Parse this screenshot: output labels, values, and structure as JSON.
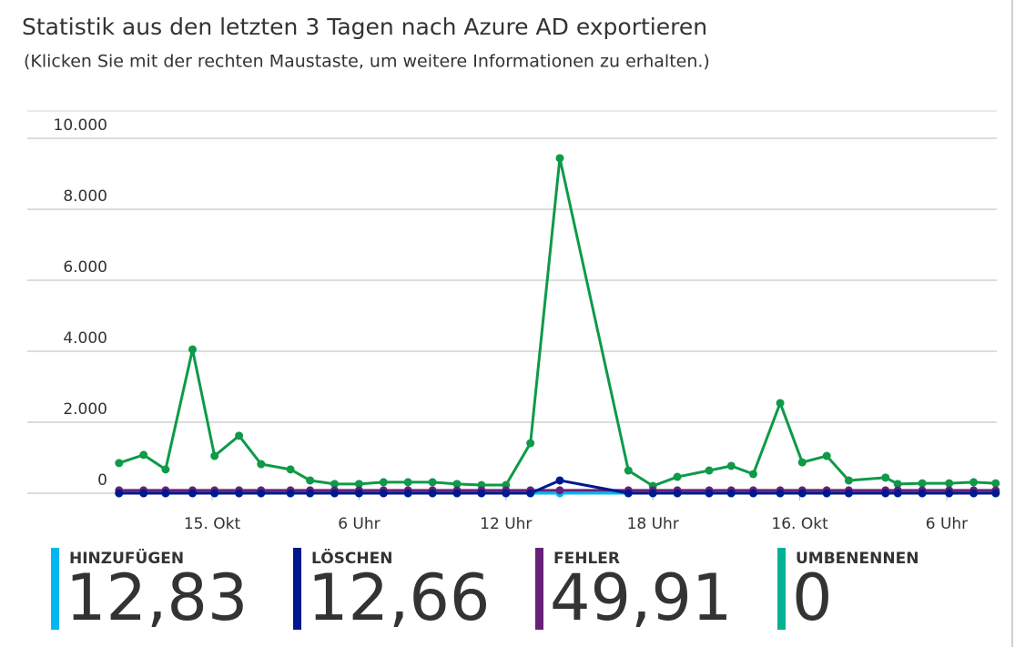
{
  "chart_data": {
    "type": "line",
    "title": "Statistik aus den letzten 3 Tagen nach Azure AD exportieren",
    "subtitle": "(Klicken Sie mit der rechten Maustaste, um weitere Informationen zu erhalten.)",
    "x": [
      -3.8,
      -2.8,
      -1.9,
      -0.8,
      0.1,
      1.1,
      2.0,
      3.2,
      4.0,
      5.0,
      6.0,
      7.0,
      8.0,
      9.0,
      10.0,
      11.0,
      12.0,
      13.0,
      14.2,
      17.0,
      18.0,
      19.0,
      20.3,
      21.2,
      22.1,
      23.2,
      24.1,
      25.1,
      26.0,
      27.5,
      28.0,
      29.0,
      30.1,
      31.1,
      32.0
    ],
    "xlim": [
      -3.83,
      32.12
    ],
    "xticks": [
      {
        "value": 0,
        "label": "15. Okt"
      },
      {
        "value": 6,
        "label": "6 Uhr"
      },
      {
        "value": 12,
        "label": "12 Uhr"
      },
      {
        "value": 18,
        "label": "18 Uhr"
      },
      {
        "value": 24,
        "label": "16. Okt"
      },
      {
        "value": 30,
        "label": "6 Uhr"
      }
    ],
    "ylim": [
      0,
      10000
    ],
    "yticks": [
      0,
      {
        "value": 2000,
        "label": "2.000"
      },
      {
        "value": 4000,
        "label": "4.000"
      },
      {
        "value": 6000,
        "label": "6.000"
      },
      {
        "value": 8000,
        "label": "8.000"
      },
      {
        "value": 10000,
        "label": "10.000"
      }
    ],
    "grid": true,
    "series": [
      {
        "color": "#0e9a48",
        "values": [
          850,
          1080,
          670,
          4050,
          1050,
          1620,
          820,
          670,
          360,
          260,
          260,
          310,
          310,
          310,
          260,
          230,
          230,
          1410,
          9440,
          640,
          205,
          460,
          640,
          770,
          540,
          2540,
          870,
          1050,
          360,
          440,
          260,
          280,
          280,
          310,
          280
        ]
      },
      {
        "name": "UMBENENNEN",
        "summary": "0",
        "color": "#00b294",
        "values": [
          0,
          0,
          0,
          0,
          0,
          0,
          0,
          0,
          0,
          0,
          0,
          0,
          0,
          0,
          0,
          0,
          0,
          0,
          0,
          0,
          0,
          0,
          0,
          0,
          0,
          0,
          0,
          0,
          0,
          0,
          0,
          0,
          0,
          0,
          0
        ]
      },
      {
        "name": "HINZUFÜGEN",
        "summary": "12,83",
        "color": "#00b7f1",
        "values": [
          0,
          0,
          0,
          0,
          0,
          0,
          0,
          0,
          0,
          0,
          0,
          0,
          0,
          0,
          0,
          0,
          0,
          0,
          0,
          0,
          0,
          0,
          0,
          0,
          0,
          0,
          0,
          0,
          0,
          0,
          0,
          0,
          0,
          0,
          0
        ]
      },
      {
        "name": "FEHLER",
        "summary": "49,91",
        "color": "#68217a",
        "values": [
          80,
          80,
          80,
          80,
          80,
          80,
          80,
          80,
          80,
          80,
          80,
          80,
          80,
          80,
          80,
          80,
          80,
          80,
          80,
          80,
          80,
          80,
          80,
          80,
          80,
          80,
          80,
          80,
          80,
          80,
          80,
          80,
          80,
          80,
          80
        ]
      },
      {
        "name": "LÖSCHEN",
        "summary": "12,66",
        "color": "#00188f",
        "values": [
          0,
          0,
          0,
          0,
          0,
          0,
          0,
          0,
          0,
          0,
          0,
          0,
          0,
          0,
          0,
          0,
          0,
          0,
          360,
          0,
          0,
          0,
          0,
          0,
          0,
          0,
          0,
          0,
          0,
          0,
          0,
          0,
          0,
          0,
          0
        ]
      }
    ],
    "tile_order": [
      2,
      4,
      3,
      1
    ]
  }
}
